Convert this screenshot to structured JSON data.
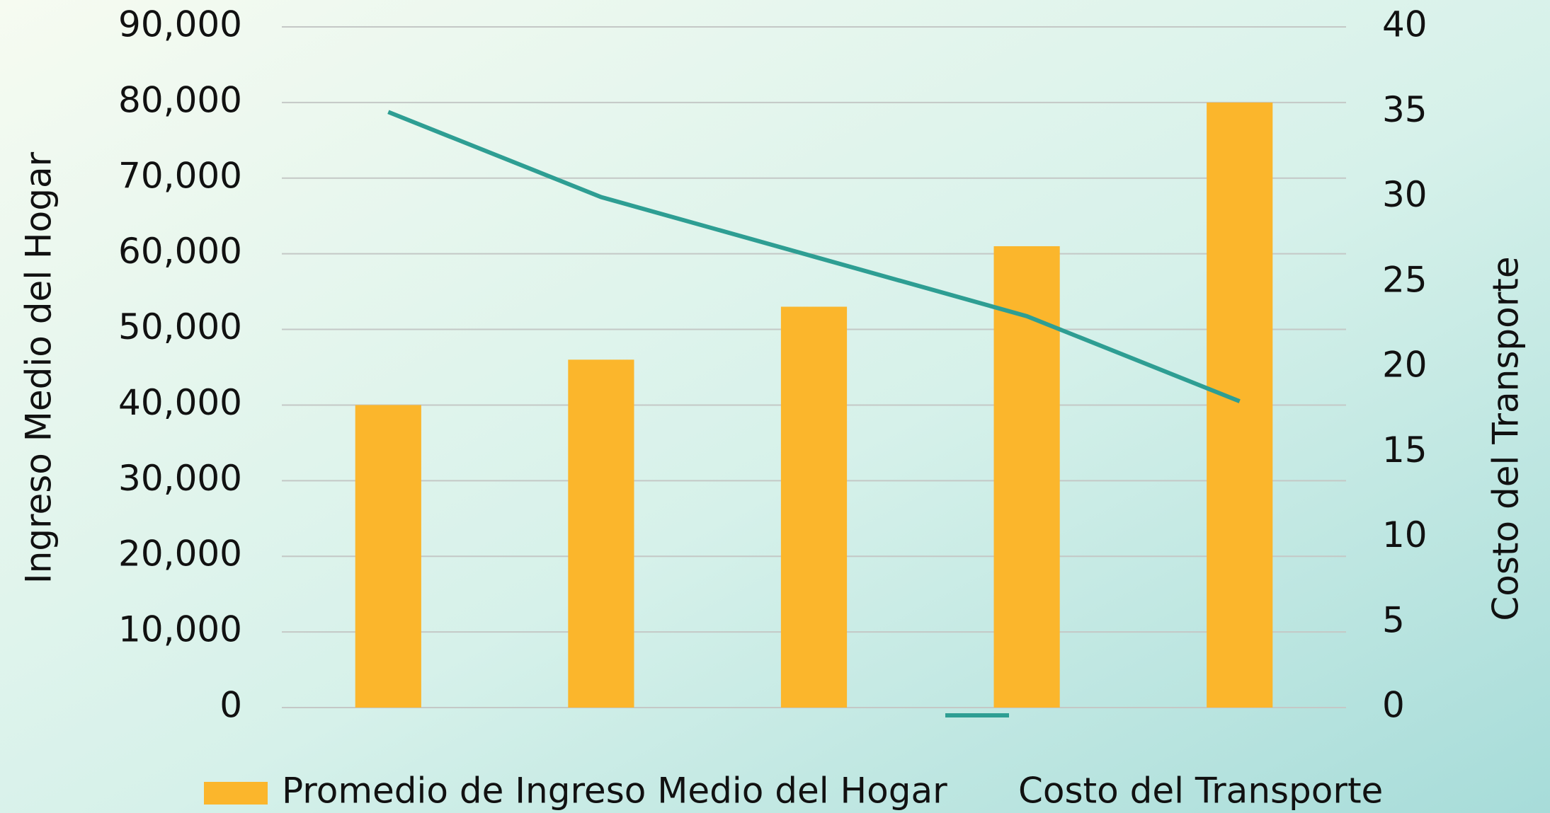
{
  "chart_data": {
    "type": "bar",
    "categories": [
      null,
      null,
      null,
      null,
      null
    ],
    "series": [
      {
        "name": "Promedio de Ingreso Medio del Hogar",
        "type": "bar",
        "color": "#fbb62c",
        "values": [
          40000,
          46000,
          53000,
          61000,
          80000
        ]
      },
      {
        "name": "Costo del Transporte",
        "type": "line",
        "color": "#2e9e93",
        "axis": "y2",
        "values": [
          35,
          30,
          26.5,
          23,
          18
        ]
      }
    ],
    "y_label": "Ingreso Medio del Hogar",
    "y2_label": "Costo del Transporte",
    "ylim": [
      0,
      90000
    ],
    "yticks": [
      0,
      {
        "value": 10000,
        "label": "10,000"
      },
      {
        "value": 20000,
        "label": "20,000"
      },
      {
        "value": 30000,
        "label": "30,000"
      },
      {
        "value": 40000,
        "label": "40,000"
      },
      {
        "value": 50000,
        "label": "50,000"
      },
      {
        "value": 60000,
        "label": "60,000"
      },
      {
        "value": 70000,
        "label": "70,000"
      },
      {
        "value": 80000,
        "label": "80,000"
      },
      {
        "value": 90000,
        "label": "90,000"
      }
    ],
    "y2lim": [
      0,
      40
    ],
    "y2ticks": [
      0,
      5,
      10,
      15,
      20,
      25,
      30,
      35,
      40
    ],
    "grid": true,
    "legend": "bottom"
  }
}
